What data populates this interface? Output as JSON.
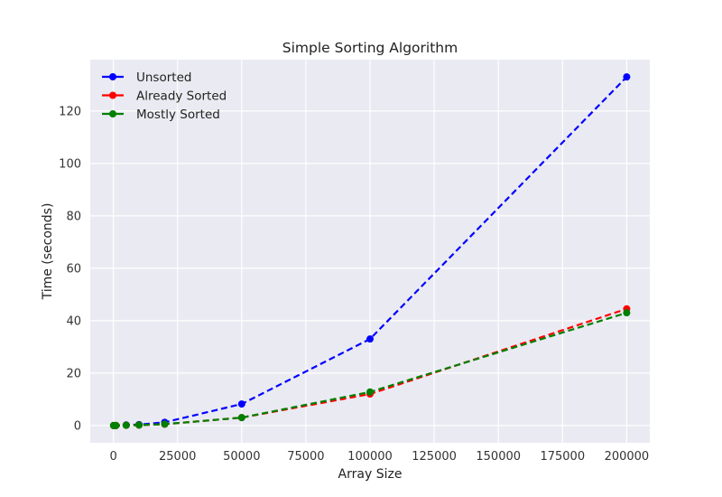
{
  "chart_data": {
    "type": "line",
    "title": "Simple Sorting Algorithm",
    "xlabel": "Array Size",
    "ylabel": "Time (seconds)",
    "xlim": [
      -9000,
      209000
    ],
    "ylim": [
      -6.6,
      139.6
    ],
    "xticks": [
      0,
      25000,
      50000,
      75000,
      100000,
      125000,
      150000,
      175000,
      200000
    ],
    "yticks": [
      0,
      20,
      40,
      60,
      80,
      100,
      120
    ],
    "grid": true,
    "legend_position": "top-left",
    "line_style": "dashed",
    "markers": "circle",
    "x": [
      100,
      1000,
      5000,
      10000,
      20000,
      50000,
      100000,
      200000
    ],
    "series": [
      {
        "name": "Unsorted",
        "color": "#0000ff",
        "values": [
          0.0,
          0.01,
          0.2,
          0.35,
          1.2,
          8.2,
          33.0,
          133.0
        ]
      },
      {
        "name": "Already Sorted",
        "color": "#ff0000",
        "values": [
          0.0,
          0.0,
          0.08,
          0.15,
          0.5,
          3.0,
          12.0,
          44.5
        ]
      },
      {
        "name": "Mostly Sorted",
        "color": "#008000",
        "values": [
          0.0,
          0.0,
          0.08,
          0.15,
          0.5,
          3.0,
          12.8,
          43.0
        ]
      }
    ]
  }
}
